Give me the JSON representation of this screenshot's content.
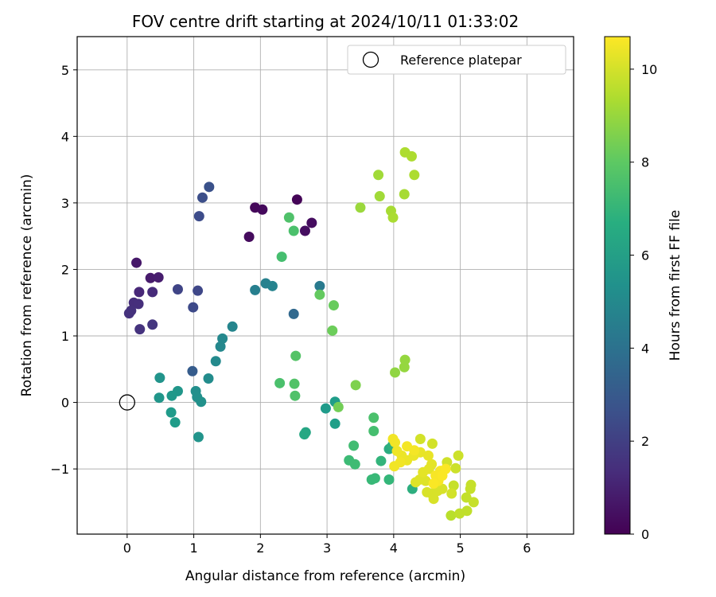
{
  "chart_data": {
    "type": "scatter",
    "title": "FOV centre drift starting at 2024/10/11 01:33:02",
    "xlabel": "Angular distance from reference (arcmin)",
    "ylabel": "Rotation from reference (arcmin)",
    "xlim": [
      -0.75,
      6.7
    ],
    "ylim": [
      -1.98,
      5.5
    ],
    "xticks": [
      "0",
      "1",
      "2",
      "3",
      "4",
      "5",
      "6"
    ],
    "xtick_values": [
      0,
      1,
      2,
      3,
      4,
      5,
      6
    ],
    "yticks": [
      "−1",
      "0",
      "1",
      "2",
      "3",
      "4",
      "5"
    ],
    "ytick_values": [
      -1,
      0,
      1,
      2,
      3,
      4,
      5
    ],
    "grid": true,
    "legend": {
      "placement": "top-right",
      "entries": [
        {
          "label": "Reference platepar",
          "marker": "open-circle"
        }
      ]
    },
    "reference_point": {
      "x": 0,
      "y": 0
    },
    "colorbar": {
      "label": "Hours from first FF file",
      "colormap": "viridis",
      "range": [
        0,
        10.7
      ],
      "ticks": [
        "0",
        "2",
        "4",
        "6",
        "8",
        "10"
      ],
      "tick_values": [
        0,
        2,
        4,
        6,
        8,
        10
      ]
    },
    "points": [
      {
        "x": 2.55,
        "y": 3.05,
        "h": 0.1
      },
      {
        "x": 1.92,
        "y": 2.93,
        "h": 0.2
      },
      {
        "x": 2.03,
        "y": 2.9,
        "h": 0.25
      },
      {
        "x": 1.83,
        "y": 2.49,
        "h": 0.3
      },
      {
        "x": 2.77,
        "y": 2.7,
        "h": 0.35
      },
      {
        "x": 2.67,
        "y": 2.58,
        "h": 0.4
      },
      {
        "x": 0.14,
        "y": 2.1,
        "h": 0.7
      },
      {
        "x": 0.35,
        "y": 1.87,
        "h": 0.8
      },
      {
        "x": 0.47,
        "y": 1.88,
        "h": 0.85
      },
      {
        "x": 0.18,
        "y": 1.66,
        "h": 1.2
      },
      {
        "x": 0.38,
        "y": 1.66,
        "h": 1.3
      },
      {
        "x": 0.1,
        "y": 1.5,
        "h": 1.4
      },
      {
        "x": 0.17,
        "y": 1.48,
        "h": 1.45
      },
      {
        "x": 0.06,
        "y": 1.38,
        "h": 1.5
      },
      {
        "x": 0.03,
        "y": 1.34,
        "h": 1.55
      },
      {
        "x": 0.19,
        "y": 1.1,
        "h": 1.6
      },
      {
        "x": 0.38,
        "y": 1.17,
        "h": 1.7
      },
      {
        "x": 0.76,
        "y": 1.7,
        "h": 2.2
      },
      {
        "x": 1.06,
        "y": 1.68,
        "h": 2.3
      },
      {
        "x": 0.99,
        "y": 1.43,
        "h": 2.4
      },
      {
        "x": 1.08,
        "y": 2.8,
        "h": 2.5
      },
      {
        "x": 1.13,
        "y": 3.08,
        "h": 2.6
      },
      {
        "x": 1.23,
        "y": 3.24,
        "h": 2.7
      },
      {
        "x": 0.98,
        "y": 0.47,
        "h": 3.1
      },
      {
        "x": 2.5,
        "y": 1.33,
        "h": 3.6
      },
      {
        "x": 2.89,
        "y": 1.75,
        "h": 4.4
      },
      {
        "x": 1.92,
        "y": 1.69,
        "h": 4.6
      },
      {
        "x": 2.08,
        "y": 1.79,
        "h": 4.7
      },
      {
        "x": 2.18,
        "y": 1.75,
        "h": 4.8
      },
      {
        "x": 1.58,
        "y": 1.14,
        "h": 4.9
      },
      {
        "x": 1.43,
        "y": 0.96,
        "h": 5.0
      },
      {
        "x": 1.4,
        "y": 0.84,
        "h": 5.0
      },
      {
        "x": 1.33,
        "y": 0.62,
        "h": 5.1
      },
      {
        "x": 1.22,
        "y": 0.36,
        "h": 5.2
      },
      {
        "x": 1.03,
        "y": 0.17,
        "h": 5.3
      },
      {
        "x": 1.05,
        "y": 0.08,
        "h": 5.35
      },
      {
        "x": 1.11,
        "y": 0.01,
        "h": 5.4
      },
      {
        "x": 1.07,
        "y": -0.52,
        "h": 5.5
      },
      {
        "x": 0.49,
        "y": 0.37,
        "h": 5.5
      },
      {
        "x": 0.48,
        "y": 0.07,
        "h": 5.6
      },
      {
        "x": 0.76,
        "y": 0.17,
        "h": 5.6
      },
      {
        "x": 0.67,
        "y": 0.1,
        "h": 5.7
      },
      {
        "x": 0.66,
        "y": -0.15,
        "h": 5.8
      },
      {
        "x": 0.72,
        "y": -0.3,
        "h": 5.85
      },
      {
        "x": 2.98,
        "y": -0.09,
        "h": 5.8
      },
      {
        "x": 3.12,
        "y": 0.01,
        "h": 5.9
      },
      {
        "x": 3.12,
        "y": -0.32,
        "h": 6.0
      },
      {
        "x": 2.68,
        "y": -0.45,
        "h": 6.3
      },
      {
        "x": 2.66,
        "y": -0.48,
        "h": 6.4
      },
      {
        "x": 3.93,
        "y": -0.7,
        "h": 6.6
      },
      {
        "x": 4.28,
        "y": -1.3,
        "h": 6.7
      },
      {
        "x": 3.98,
        "y": -0.65,
        "h": 6.8
      },
      {
        "x": 3.81,
        "y": -0.88,
        "h": 7.0
      },
      {
        "x": 3.93,
        "y": -1.16,
        "h": 7.1
      },
      {
        "x": 3.67,
        "y": -1.16,
        "h": 7.2
      },
      {
        "x": 3.72,
        "y": -1.14,
        "h": 7.2
      },
      {
        "x": 3.33,
        "y": -0.87,
        "h": 7.3
      },
      {
        "x": 3.42,
        "y": -0.93,
        "h": 7.35
      },
      {
        "x": 3.4,
        "y": -0.65,
        "h": 7.4
      },
      {
        "x": 3.7,
        "y": -0.43,
        "h": 7.5
      },
      {
        "x": 3.7,
        "y": -0.23,
        "h": 7.6
      },
      {
        "x": 2.29,
        "y": 0.29,
        "h": 7.6
      },
      {
        "x": 2.52,
        "y": 0.1,
        "h": 7.7
      },
      {
        "x": 2.51,
        "y": 0.28,
        "h": 7.75
      },
      {
        "x": 2.53,
        "y": 0.7,
        "h": 7.8
      },
      {
        "x": 2.32,
        "y": 2.19,
        "h": 7.5
      },
      {
        "x": 2.5,
        "y": 2.58,
        "h": 7.6
      },
      {
        "x": 2.43,
        "y": 2.78,
        "h": 7.7
      },
      {
        "x": 2.89,
        "y": 1.62,
        "h": 8.1
      },
      {
        "x": 3.1,
        "y": 1.46,
        "h": 8.2
      },
      {
        "x": 3.08,
        "y": 1.08,
        "h": 8.3
      },
      {
        "x": 3.17,
        "y": -0.07,
        "h": 8.4
      },
      {
        "x": 3.43,
        "y": 0.26,
        "h": 8.6
      },
      {
        "x": 4.02,
        "y": 0.45,
        "h": 8.9
      },
      {
        "x": 4.16,
        "y": 0.53,
        "h": 9.0
      },
      {
        "x": 4.17,
        "y": 0.64,
        "h": 9.0
      },
      {
        "x": 3.5,
        "y": 2.93,
        "h": 9.1
      },
      {
        "x": 3.79,
        "y": 3.1,
        "h": 9.2
      },
      {
        "x": 3.77,
        "y": 3.42,
        "h": 9.2
      },
      {
        "x": 3.96,
        "y": 2.88,
        "h": 9.3
      },
      {
        "x": 3.99,
        "y": 2.78,
        "h": 9.35
      },
      {
        "x": 4.16,
        "y": 3.13,
        "h": 9.3
      },
      {
        "x": 4.31,
        "y": 3.42,
        "h": 9.4
      },
      {
        "x": 4.17,
        "y": 3.76,
        "h": 9.4
      },
      {
        "x": 4.27,
        "y": 3.7,
        "h": 9.4
      },
      {
        "x": 4.86,
        "y": -1.7,
        "h": 9.6
      },
      {
        "x": 4.99,
        "y": -1.67,
        "h": 9.7
      },
      {
        "x": 5.1,
        "y": -1.63,
        "h": 9.7
      },
      {
        "x": 5.2,
        "y": -1.5,
        "h": 9.8
      },
      {
        "x": 5.16,
        "y": -1.24,
        "h": 9.8
      },
      {
        "x": 5.09,
        "y": -1.43,
        "h": 9.75
      },
      {
        "x": 5.15,
        "y": -1.3,
        "h": 9.8
      },
      {
        "x": 4.9,
        "y": -1.25,
        "h": 9.8
      },
      {
        "x": 4.93,
        "y": -0.99,
        "h": 9.9
      },
      {
        "x": 4.97,
        "y": -0.8,
        "h": 9.9
      },
      {
        "x": 4.8,
        "y": -0.9,
        "h": 9.95
      },
      {
        "x": 4.58,
        "y": -0.62,
        "h": 10.0
      },
      {
        "x": 4.4,
        "y": -0.55,
        "h": 10.0
      },
      {
        "x": 4.87,
        "y": -1.37,
        "h": 10.0
      },
      {
        "x": 4.57,
        "y": -1.37,
        "h": 10.1
      },
      {
        "x": 4.6,
        "y": -1.45,
        "h": 10.1
      },
      {
        "x": 4.66,
        "y": -1.33,
        "h": 10.1
      },
      {
        "x": 4.73,
        "y": -1.3,
        "h": 10.1
      },
      {
        "x": 4.5,
        "y": -1.35,
        "h": 10.1
      },
      {
        "x": 4.48,
        "y": -1.18,
        "h": 10.2
      },
      {
        "x": 4.33,
        "y": -1.2,
        "h": 10.2
      },
      {
        "x": 4.39,
        "y": -1.16,
        "h": 10.2
      },
      {
        "x": 4.44,
        "y": -1.05,
        "h": 10.3
      },
      {
        "x": 4.53,
        "y": -1.0,
        "h": 10.3
      },
      {
        "x": 4.57,
        "y": -0.93,
        "h": 10.3
      },
      {
        "x": 4.52,
        "y": -0.8,
        "h": 10.35
      },
      {
        "x": 4.4,
        "y": -0.75,
        "h": 10.35
      },
      {
        "x": 4.3,
        "y": -0.8,
        "h": 10.4
      },
      {
        "x": 4.2,
        "y": -0.87,
        "h": 10.4
      },
      {
        "x": 4.12,
        "y": -0.8,
        "h": 10.4
      },
      {
        "x": 4.05,
        "y": -0.73,
        "h": 10.45
      },
      {
        "x": 3.99,
        "y": -0.55,
        "h": 10.5
      },
      {
        "x": 4.02,
        "y": -0.6,
        "h": 10.5
      },
      {
        "x": 4.1,
        "y": -0.9,
        "h": 10.5
      },
      {
        "x": 4.01,
        "y": -0.96,
        "h": 10.5
      },
      {
        "x": 4.2,
        "y": -0.66,
        "h": 10.55
      },
      {
        "x": 4.31,
        "y": -0.72,
        "h": 10.55
      },
      {
        "x": 4.63,
        "y": -1.1,
        "h": 10.6
      },
      {
        "x": 4.67,
        "y": -1.18,
        "h": 10.6
      },
      {
        "x": 4.7,
        "y": -1.03,
        "h": 10.6
      },
      {
        "x": 4.73,
        "y": -1.1,
        "h": 10.65
      },
      {
        "x": 4.6,
        "y": -1.22,
        "h": 10.65
      },
      {
        "x": 4.78,
        "y": -1.0,
        "h": 10.65
      }
    ]
  }
}
